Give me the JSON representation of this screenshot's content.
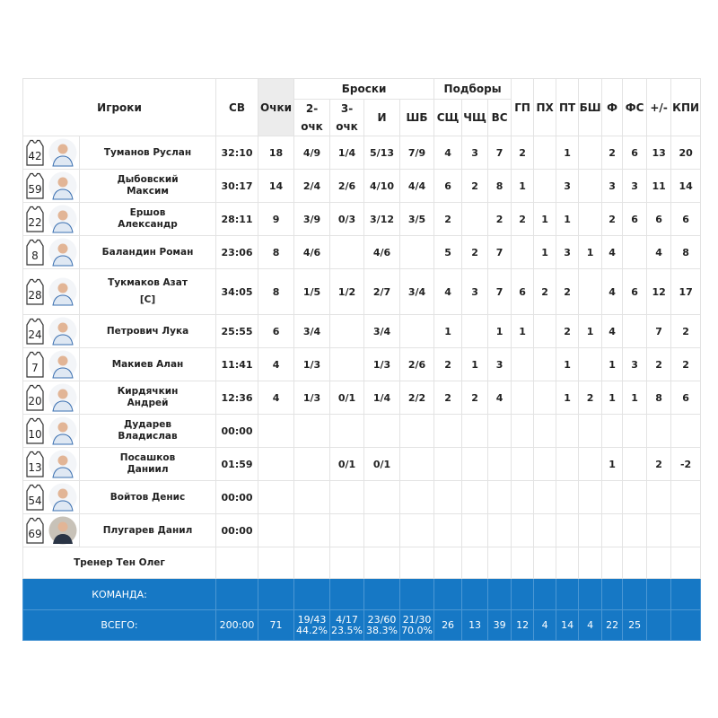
{
  "table": {
    "header": {
      "players": "Игроки",
      "time": "СВ",
      "points": "Очки",
      "shots_group": "Броски",
      "shots": [
        "2-очк",
        "3-очк",
        "И",
        "ШБ"
      ],
      "rebounds_group": "Подборы",
      "rebounds": [
        "СЩ",
        "ЧЩ",
        "ВС"
      ],
      "other": [
        "ГП",
        "ПХ",
        "ПТ",
        "БШ",
        "Ф",
        "ФС",
        "+/-",
        "КПИ"
      ]
    },
    "players": [
      {
        "number": 42,
        "name": "Туманов Руслан",
        "stats": [
          "32:10",
          18,
          "4/9",
          "1/4",
          "5/13",
          "7/9",
          4,
          3,
          7,
          2,
          null,
          1,
          null,
          2,
          6,
          13,
          20
        ]
      },
      {
        "number": 59,
        "name": "Дыбовский Максим",
        "stats": [
          "30:17",
          14,
          "2/4",
          "2/6",
          "4/10",
          "4/4",
          6,
          2,
          8,
          1,
          null,
          3,
          null,
          3,
          3,
          11,
          14
        ]
      },
      {
        "number": 22,
        "name": "Ершов Александр",
        "stats": [
          "28:11",
          9,
          "3/9",
          "0/3",
          "3/12",
          "3/5",
          2,
          null,
          2,
          2,
          1,
          1,
          null,
          2,
          6,
          6,
          6
        ]
      },
      {
        "number": 8,
        "name": "Баландин Роман",
        "stats": [
          "23:06",
          8,
          "4/6",
          null,
          "4/6",
          null,
          5,
          2,
          7,
          null,
          1,
          3,
          1,
          4,
          null,
          4,
          8
        ]
      },
      {
        "number": 28,
        "name": "Тукмаков Азат",
        "captain": "[C]",
        "stats": [
          "34:05",
          8,
          "1/5",
          "1/2",
          "2/7",
          "3/4",
          4,
          3,
          7,
          6,
          2,
          2,
          null,
          4,
          6,
          12,
          17
        ]
      },
      {
        "number": 24,
        "name": "Петрович Лука",
        "stats": [
          "25:55",
          6,
          "3/4",
          null,
          "3/4",
          null,
          1,
          null,
          1,
          1,
          null,
          2,
          1,
          4,
          null,
          7,
          2
        ]
      },
      {
        "number": 7,
        "name": "Макиев Алан",
        "stats": [
          "11:41",
          4,
          "1/3",
          null,
          "1/3",
          "2/6",
          2,
          1,
          3,
          null,
          null,
          1,
          null,
          1,
          3,
          2,
          2
        ]
      },
      {
        "number": 20,
        "name": "Кирдячкин Андрей",
        "stats": [
          "12:36",
          4,
          "1/3",
          "0/1",
          "1/4",
          "2/2",
          2,
          2,
          4,
          null,
          null,
          1,
          2,
          1,
          1,
          8,
          6
        ]
      },
      {
        "number": 10,
        "name": "Дударев Владислав",
        "stats": [
          "00:00",
          null,
          null,
          null,
          null,
          null,
          null,
          null,
          null,
          null,
          null,
          null,
          null,
          null,
          null,
          null,
          null
        ]
      },
      {
        "number": 13,
        "name": "Посашков Даниил",
        "stats": [
          "01:59",
          null,
          null,
          "0/1",
          "0/1",
          null,
          null,
          null,
          null,
          null,
          null,
          null,
          null,
          1,
          null,
          2,
          -2
        ]
      },
      {
        "number": 54,
        "name": "Войтов Денис",
        "stats": [
          "00:00",
          null,
          null,
          null,
          null,
          null,
          null,
          null,
          null,
          null,
          null,
          null,
          null,
          null,
          null,
          null,
          null
        ]
      },
      {
        "number": 69,
        "name": "Плугарев Данил",
        "stats": [
          "00:00",
          null,
          null,
          null,
          null,
          null,
          null,
          null,
          null,
          null,
          null,
          null,
          null,
          null,
          null,
          null,
          null
        ]
      }
    ],
    "coach": "Тренер Тен Олег",
    "team": {
      "label": "КОМАНДА:"
    },
    "total": {
      "label": "ВСЕГО:",
      "stats": [
        "200:00",
        71,
        [
          "19/43",
          "44.2%"
        ],
        [
          "4/17",
          "23.5%"
        ],
        [
          "23/60",
          "38.3%"
        ],
        [
          "21/30",
          "70.0%"
        ],
        26,
        13,
        39,
        12,
        4,
        14,
        4,
        22,
        25,
        null,
        null
      ]
    }
  }
}
